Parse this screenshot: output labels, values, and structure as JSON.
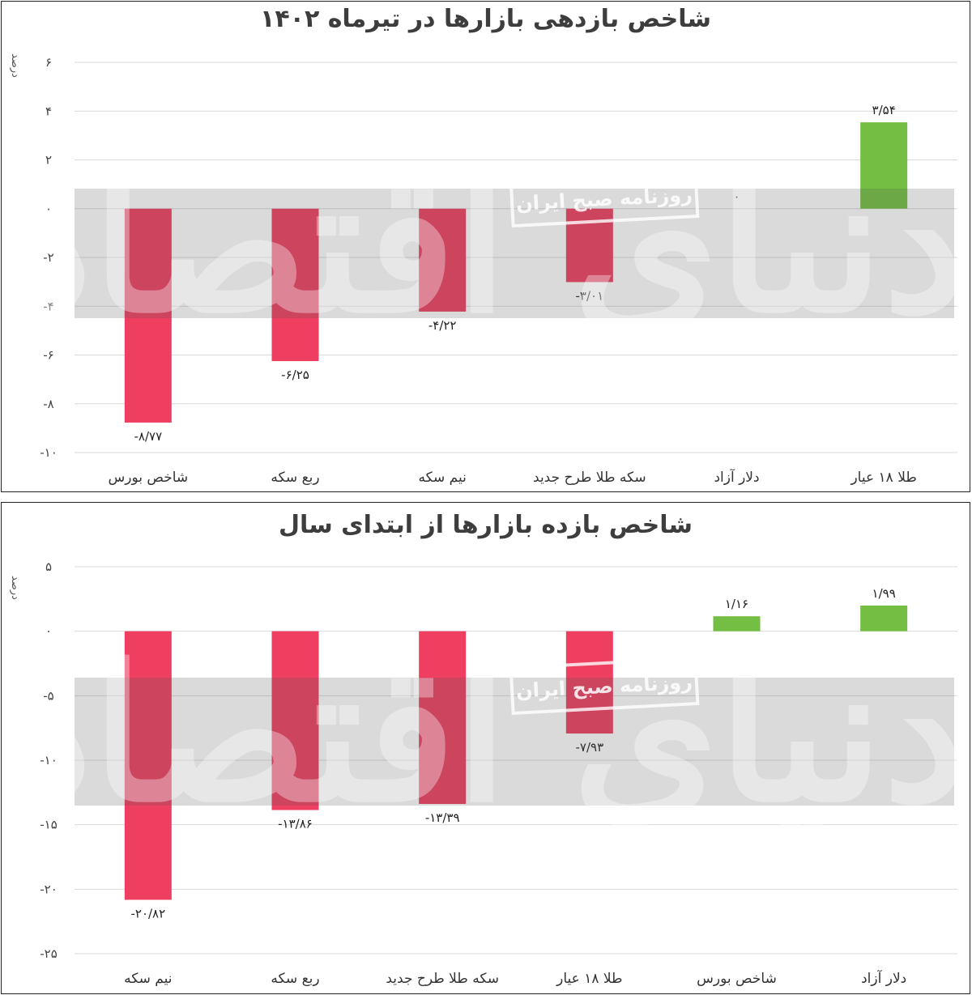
{
  "chart_data": [
    {
      "type": "bar",
      "title": "شاخص بازدهی بازارها در تیرماه ۱۴۰۲",
      "ylabel": "درصد",
      "xlabel": "",
      "categories": [
        "شاخص بورس",
        "ربع سکه",
        "نیم سکه",
        "سکه طلا طرح جدید",
        "دلار آزاد",
        "طلا ۱۸ عیار"
      ],
      "values": [
        -8.77,
        -6.25,
        -4.22,
        -3.01,
        0,
        3.54
      ],
      "value_labels": [
        "-۸/۷۷",
        "-۶/۲۵",
        "-۴/۲۲",
        "-۳/۰۱",
        "۰",
        "۳/۵۴"
      ],
      "ylim": [
        -10,
        6
      ],
      "yticks": [
        6,
        4,
        2,
        0,
        -2,
        -4,
        -6,
        -8,
        -10
      ],
      "ytick_labels": [
        "۶",
        "۴",
        "۲",
        "۰",
        "-۲",
        "-۴",
        "-۶",
        "-۸",
        "-۱۰"
      ],
      "grid": true,
      "legend": "none"
    },
    {
      "type": "bar",
      "title": "شاخص بازده بازارها از ابتدای سال",
      "ylabel": "درصد",
      "xlabel": "",
      "categories": [
        "نیم سکه",
        "ربع سکه",
        "سکه طلا طرح جدید",
        "طلا ۱۸ عیار",
        "شاخص بورس",
        "دلار آزاد"
      ],
      "values": [
        -20.82,
        -13.86,
        -13.39,
        -7.93,
        1.16,
        1.99
      ],
      "value_labels": [
        "-۲۰/۸۲",
        "-۱۳/۸۶",
        "-۱۳/۳۹",
        "-۷/۹۳",
        "۱/۱۶",
        "۱/۹۹"
      ],
      "ylim": [
        -25,
        5
      ],
      "yticks": [
        5,
        0,
        -5,
        -10,
        -15,
        -20,
        -25
      ],
      "ytick_labels": [
        "۵",
        "۰",
        "-۵",
        "-۱۰",
        "-۱۵",
        "-۲۰",
        "-۲۵"
      ],
      "grid": true,
      "legend": "none"
    }
  ],
  "watermark": {
    "brand": "دنیای اقتصاد",
    "badge": "روزنامه صبح ایران"
  },
  "colors": {
    "negative": "#ee3f60",
    "positive": "#74bf43",
    "band": "#d9d9d9",
    "grid": "#d9d9d9"
  }
}
